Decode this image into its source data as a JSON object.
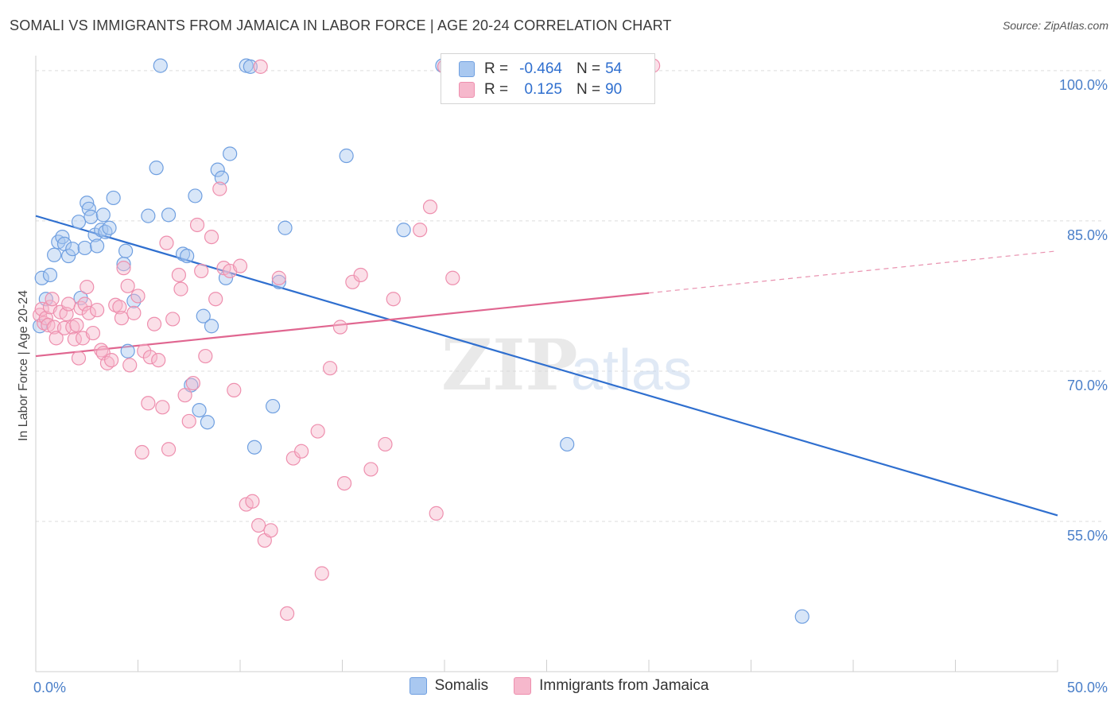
{
  "header": {
    "title": "SOMALI VS IMMIGRANTS FROM JAMAICA IN LABOR FORCE | AGE 20-24 CORRELATION CHART",
    "source": "Source: ZipAtlas.com"
  },
  "legend": {
    "rows": [
      {
        "r_label": "R =",
        "r_value": "-0.464",
        "n_label": "N =",
        "n_value": "54"
      },
      {
        "r_label": "R =",
        "r_value": "0.125",
        "n_label": "N =",
        "n_value": "90"
      }
    ],
    "bottom": [
      "Somalis",
      "Immigrants from Jamaica"
    ]
  },
  "watermark": {
    "zip": "ZIP",
    "atlas": "atlas"
  },
  "colors": {
    "somali_fill": "#a9c8f0",
    "somali_stroke": "#6f9fe0",
    "somali_line": "#2f6fcf",
    "jamaica_fill": "#f6b8cc",
    "jamaica_stroke": "#ee8fae",
    "jamaica_line": "#e06690",
    "axis_text": "#4a7fc9"
  },
  "chart_data": {
    "type": "scatter",
    "title": "SOMALI VS IMMIGRANTS FROM JAMAICA IN LABOR FORCE | AGE 20-24 CORRELATION CHART",
    "xlabel": "",
    "ylabel": "In Labor Force | Age 20-24",
    "xlim": [
      0,
      50
    ],
    "ylim": [
      40,
      101.5
    ],
    "x_tick_labels": [
      "0.0%",
      "50.0%"
    ],
    "y_ticks": [
      100,
      85,
      70,
      55
    ],
    "y_tick_labels": [
      "100.0%",
      "85.0%",
      "70.0%",
      "55.0%"
    ],
    "grid": true,
    "legend_position": "top-center",
    "series": [
      {
        "name": "Somalis",
        "r": -0.464,
        "n": 54,
        "trend": {
          "x": [
            0,
            50
          ],
          "y": [
            85.5,
            55.6
          ]
        },
        "points": [
          [
            0.2,
            74.5
          ],
          [
            0.3,
            79.3
          ],
          [
            0.5,
            77.2
          ],
          [
            0.7,
            79.6
          ],
          [
            0.9,
            81.6
          ],
          [
            1.1,
            82.9
          ],
          [
            1.3,
            83.4
          ],
          [
            1.4,
            82.7
          ],
          [
            1.6,
            81.5
          ],
          [
            1.8,
            82.2
          ],
          [
            2.1,
            84.9
          ],
          [
            2.2,
            77.3
          ],
          [
            2.4,
            82.3
          ],
          [
            2.5,
            86.8
          ],
          [
            2.6,
            86.2
          ],
          [
            2.7,
            85.4
          ],
          [
            2.9,
            83.6
          ],
          [
            3.0,
            82.5
          ],
          [
            3.2,
            84.1
          ],
          [
            3.3,
            85.6
          ],
          [
            3.4,
            83.9
          ],
          [
            3.6,
            84.3
          ],
          [
            3.8,
            87.3
          ],
          [
            4.3,
            80.7
          ],
          [
            4.4,
            82.0
          ],
          [
            4.5,
            72.0
          ],
          [
            4.8,
            77.0
          ],
          [
            5.5,
            85.5
          ],
          [
            5.9,
            90.3
          ],
          [
            6.1,
            100.5
          ],
          [
            6.5,
            85.6
          ],
          [
            7.2,
            81.7
          ],
          [
            7.4,
            81.5
          ],
          [
            7.6,
            68.6
          ],
          [
            7.8,
            87.5
          ],
          [
            8.0,
            66.1
          ],
          [
            8.2,
            75.5
          ],
          [
            8.4,
            64.9
          ],
          [
            8.6,
            74.5
          ],
          [
            8.9,
            90.1
          ],
          [
            9.1,
            89.3
          ],
          [
            9.3,
            79.3
          ],
          [
            9.5,
            91.7
          ],
          [
            10.3,
            100.5
          ],
          [
            10.5,
            100.4
          ],
          [
            10.7,
            62.4
          ],
          [
            11.6,
            66.5
          ],
          [
            11.9,
            78.9
          ],
          [
            12.2,
            84.3
          ],
          [
            15.2,
            91.5
          ],
          [
            18.0,
            84.1
          ],
          [
            19.9,
            100.5
          ],
          [
            26.0,
            62.7
          ],
          [
            37.5,
            45.5
          ]
        ]
      },
      {
        "name": "Immigrants from Jamaica",
        "r": 0.125,
        "n": 90,
        "trend": {
          "x": [
            0,
            30
          ],
          "y": [
            71.5,
            77.8
          ]
        },
        "trend_extension": {
          "x": [
            30,
            50
          ],
          "y": [
            77.8,
            82.0
          ]
        },
        "points": [
          [
            0.2,
            75.6
          ],
          [
            0.3,
            76.2
          ],
          [
            0.4,
            74.8
          ],
          [
            0.5,
            75.3
          ],
          [
            0.6,
            74.6
          ],
          [
            0.7,
            76.4
          ],
          [
            0.8,
            77.2
          ],
          [
            0.9,
            74.4
          ],
          [
            1.0,
            73.3
          ],
          [
            1.2,
            75.9
          ],
          [
            1.4,
            74.3
          ],
          [
            1.5,
            75.7
          ],
          [
            1.6,
            76.7
          ],
          [
            1.8,
            74.4
          ],
          [
            1.9,
            73.2
          ],
          [
            2.0,
            74.6
          ],
          [
            2.1,
            71.3
          ],
          [
            2.2,
            76.3
          ],
          [
            2.3,
            73.3
          ],
          [
            2.4,
            76.7
          ],
          [
            2.5,
            78.4
          ],
          [
            2.6,
            75.8
          ],
          [
            2.8,
            73.8
          ],
          [
            3.0,
            76.1
          ],
          [
            3.2,
            72.1
          ],
          [
            3.3,
            71.8
          ],
          [
            3.5,
            70.8
          ],
          [
            3.7,
            71.1
          ],
          [
            3.9,
            76.6
          ],
          [
            4.1,
            76.4
          ],
          [
            4.2,
            75.3
          ],
          [
            4.3,
            80.3
          ],
          [
            4.5,
            78.5
          ],
          [
            4.6,
            70.6
          ],
          [
            4.8,
            75.8
          ],
          [
            5.0,
            77.5
          ],
          [
            5.2,
            61.9
          ],
          [
            5.3,
            72.0
          ],
          [
            5.5,
            66.8
          ],
          [
            5.6,
            71.4
          ],
          [
            5.8,
            74.7
          ],
          [
            6.0,
            71.1
          ],
          [
            6.2,
            66.4
          ],
          [
            6.4,
            82.8
          ],
          [
            6.5,
            62.2
          ],
          [
            6.7,
            75.2
          ],
          [
            7.0,
            79.6
          ],
          [
            7.1,
            78.2
          ],
          [
            7.3,
            67.6
          ],
          [
            7.5,
            65.0
          ],
          [
            7.7,
            68.8
          ],
          [
            7.9,
            84.6
          ],
          [
            8.1,
            80.0
          ],
          [
            8.3,
            71.5
          ],
          [
            8.6,
            83.4
          ],
          [
            8.8,
            77.2
          ],
          [
            9.0,
            88.2
          ],
          [
            9.2,
            80.3
          ],
          [
            9.5,
            80.0
          ],
          [
            9.7,
            68.1
          ],
          [
            10.0,
            80.5
          ],
          [
            10.3,
            56.7
          ],
          [
            10.6,
            57.0
          ],
          [
            10.9,
            54.6
          ],
          [
            11.0,
            100.4
          ],
          [
            11.2,
            53.1
          ],
          [
            11.5,
            54.1
          ],
          [
            11.9,
            79.3
          ],
          [
            12.3,
            45.8
          ],
          [
            12.6,
            61.3
          ],
          [
            13.0,
            62.0
          ],
          [
            13.8,
            64.0
          ],
          [
            14.0,
            49.8
          ],
          [
            14.4,
            70.3
          ],
          [
            14.9,
            74.4
          ],
          [
            15.1,
            58.8
          ],
          [
            15.5,
            78.9
          ],
          [
            15.9,
            79.6
          ],
          [
            16.4,
            60.2
          ],
          [
            17.1,
            62.7
          ],
          [
            17.5,
            77.2
          ],
          [
            18.8,
            84.1
          ],
          [
            19.3,
            86.4
          ],
          [
            19.6,
            55.8
          ],
          [
            20.0,
            100.4
          ],
          [
            20.4,
            79.3
          ],
          [
            25.9,
            100.5
          ],
          [
            26.8,
            100.2
          ],
          [
            29.5,
            100.3
          ],
          [
            30.2,
            100.5
          ]
        ]
      }
    ]
  }
}
